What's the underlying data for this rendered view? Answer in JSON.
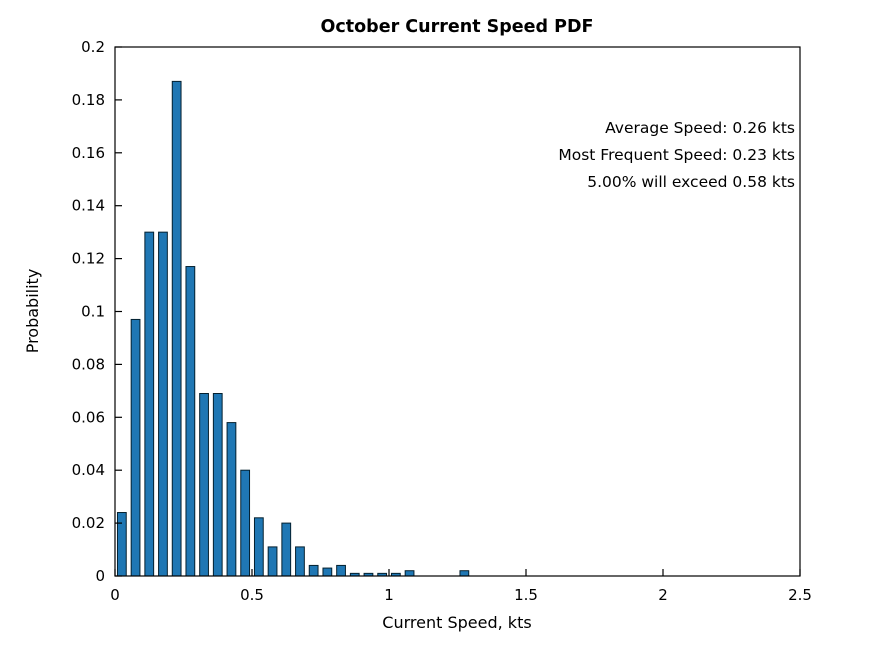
{
  "figure": {
    "background": "#ffffff"
  },
  "chart_data": {
    "type": "bar",
    "title": "October Current Speed PDF",
    "xlabel": "Current Speed, kts",
    "ylabel": "Probability",
    "xlim": [
      0,
      2.5
    ],
    "ylim": [
      0,
      0.2
    ],
    "grid": false,
    "bin_width": 0.05,
    "bar_rel_width": 0.64,
    "categories": [
      0.025,
      0.075,
      0.125,
      0.175,
      0.225,
      0.275,
      0.325,
      0.375,
      0.425,
      0.475,
      0.525,
      0.575,
      0.625,
      0.675,
      0.725,
      0.775,
      0.825,
      0.875,
      0.925,
      0.975,
      1.025,
      1.075,
      1.125,
      1.175,
      1.225,
      1.275,
      1.325
    ],
    "values": [
      0.024,
      0.097,
      0.13,
      0.13,
      0.187,
      0.117,
      0.069,
      0.069,
      0.058,
      0.04,
      0.022,
      0.011,
      0.02,
      0.011,
      0.004,
      0.003,
      0.004,
      0.001,
      0.001,
      0.001,
      0.001,
      0.002,
      0,
      0,
      0,
      0.002,
      0
    ],
    "xticks": {
      "values": [
        0,
        0.5,
        1,
        1.5,
        2,
        2.5
      ],
      "labels": [
        "0",
        "0.5",
        "1",
        "1.5",
        "2",
        "2.5"
      ]
    },
    "yticks": {
      "values": [
        0,
        0.02,
        0.04,
        0.06,
        0.08,
        0.1,
        0.12,
        0.14,
        0.16,
        0.18,
        0.2
      ],
      "labels": [
        "0",
        "0.02",
        "0.04",
        "0.06",
        "0.08",
        "0.1",
        "0.12",
        "0.14",
        "0.16",
        "0.18",
        "0.2"
      ]
    },
    "annotations": [
      {
        "text": "Average Speed: 0.26 kts"
      },
      {
        "text": "Most Frequent Speed: 0.23 kts"
      },
      {
        "text": "5.00% will exceed 0.58 kts"
      }
    ],
    "colors": {
      "bar_fill": "#1F77B4",
      "bar_edge": "#04202f",
      "axis": "#000000",
      "text": "#000000"
    }
  }
}
